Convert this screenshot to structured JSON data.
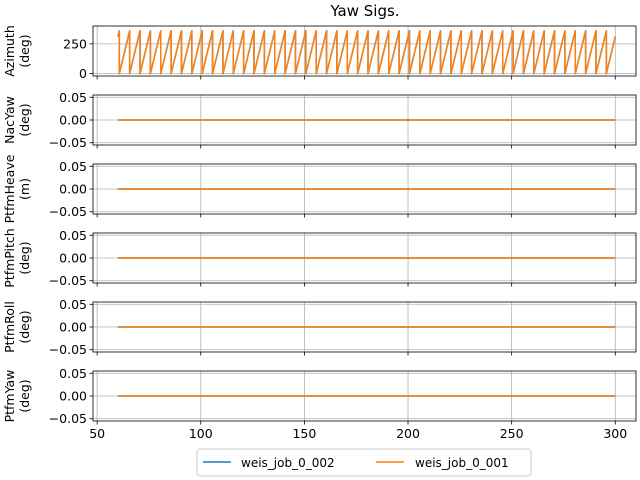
{
  "figure": {
    "title": "Yaw Sigs."
  },
  "legend": {
    "placement": "bottom-center",
    "entries": [
      {
        "label": "weis_job_0_002",
        "color": "#1f77b4"
      },
      {
        "label": "weis_job_0_001",
        "color": "#ff7f0e"
      }
    ]
  },
  "chart_data": [
    {
      "type": "line",
      "ylabel": [
        "Azimuth",
        "(deg)"
      ],
      "xlim": [
        48,
        310
      ],
      "ylim": [
        -20,
        400
      ],
      "yticks": [
        0,
        250
      ],
      "ytick_labels": [
        "0",
        "250"
      ],
      "grid": true,
      "series": [
        {
          "name": "weis_job_0_002",
          "color": "#1f77b4",
          "pattern": "sawtooth",
          "x_start": 60,
          "x_end": 300,
          "period": 5.0,
          "min": 0,
          "max": 360,
          "start_value": 310
        },
        {
          "name": "weis_job_0_001",
          "color": "#ff7f0e",
          "pattern": "sawtooth",
          "x_start": 60,
          "x_end": 300,
          "period": 5.0,
          "min": 0,
          "max": 360,
          "start_value": 310
        }
      ]
    },
    {
      "type": "line",
      "ylabel": [
        "NacYaw",
        "(deg)"
      ],
      "xlim": [
        48,
        310
      ],
      "ylim": [
        -0.055,
        0.055
      ],
      "yticks": [
        0.05,
        0.0,
        -0.05
      ],
      "ytick_labels": [
        "0.05",
        "0.00",
        "−0.05"
      ],
      "grid": true,
      "series": [
        {
          "name": "weis_job_0_002",
          "color": "#1f77b4",
          "x": [
            60,
            300
          ],
          "y": [
            0,
            0
          ]
        },
        {
          "name": "weis_job_0_001",
          "color": "#ff7f0e",
          "x": [
            60,
            300
          ],
          "y": [
            0,
            0
          ]
        }
      ]
    },
    {
      "type": "line",
      "ylabel": [
        "PtfmHeave",
        "(m)"
      ],
      "xlim": [
        48,
        310
      ],
      "ylim": [
        -0.055,
        0.055
      ],
      "yticks": [
        0.05,
        0.0,
        -0.05
      ],
      "ytick_labels": [
        "0.05",
        "0.00",
        "−0.05"
      ],
      "grid": true,
      "series": [
        {
          "name": "weis_job_0_002",
          "color": "#1f77b4",
          "x": [
            60,
            300
          ],
          "y": [
            0,
            0
          ]
        },
        {
          "name": "weis_job_0_001",
          "color": "#ff7f0e",
          "x": [
            60,
            300
          ],
          "y": [
            0,
            0
          ]
        }
      ]
    },
    {
      "type": "line",
      "ylabel": [
        "PtfmPitch",
        "(deg)"
      ],
      "xlim": [
        48,
        310
      ],
      "ylim": [
        -0.055,
        0.055
      ],
      "yticks": [
        0.05,
        0.0,
        -0.05
      ],
      "ytick_labels": [
        "0.05",
        "0.00",
        "−0.05"
      ],
      "grid": true,
      "series": [
        {
          "name": "weis_job_0_002",
          "color": "#1f77b4",
          "x": [
            60,
            300
          ],
          "y": [
            0,
            0
          ]
        },
        {
          "name": "weis_job_0_001",
          "color": "#ff7f0e",
          "x": [
            60,
            300
          ],
          "y": [
            0,
            0
          ]
        }
      ]
    },
    {
      "type": "line",
      "ylabel": [
        "PtfmRoll",
        "(deg)"
      ],
      "xlim": [
        48,
        310
      ],
      "ylim": [
        -0.055,
        0.055
      ],
      "yticks": [
        0.05,
        0.0,
        -0.05
      ],
      "ytick_labels": [
        "0.05",
        "0.00",
        "−0.05"
      ],
      "grid": true,
      "series": [
        {
          "name": "weis_job_0_002",
          "color": "#1f77b4",
          "x": [
            60,
            300
          ],
          "y": [
            0,
            0
          ]
        },
        {
          "name": "weis_job_0_001",
          "color": "#ff7f0e",
          "x": [
            60,
            300
          ],
          "y": [
            0,
            0
          ]
        }
      ]
    },
    {
      "type": "line",
      "ylabel": [
        "PtfmYaw",
        "(deg)"
      ],
      "xlim": [
        48,
        310
      ],
      "ylim": [
        -0.055,
        0.055
      ],
      "yticks": [
        0.05,
        0.0,
        -0.05
      ],
      "ytick_labels": [
        "0.05",
        "0.00",
        "−0.05"
      ],
      "xticks": [
        50,
        100,
        150,
        200,
        250,
        300
      ],
      "xtick_labels": [
        "50",
        "100",
        "150",
        "200",
        "250",
        "300"
      ],
      "grid": true,
      "series": [
        {
          "name": "weis_job_0_002",
          "color": "#1f77b4",
          "x": [
            60,
            300
          ],
          "y": [
            0,
            0
          ]
        },
        {
          "name": "weis_job_0_001",
          "color": "#ff7f0e",
          "x": [
            60,
            300
          ],
          "y": [
            0,
            0
          ]
        }
      ]
    }
  ]
}
